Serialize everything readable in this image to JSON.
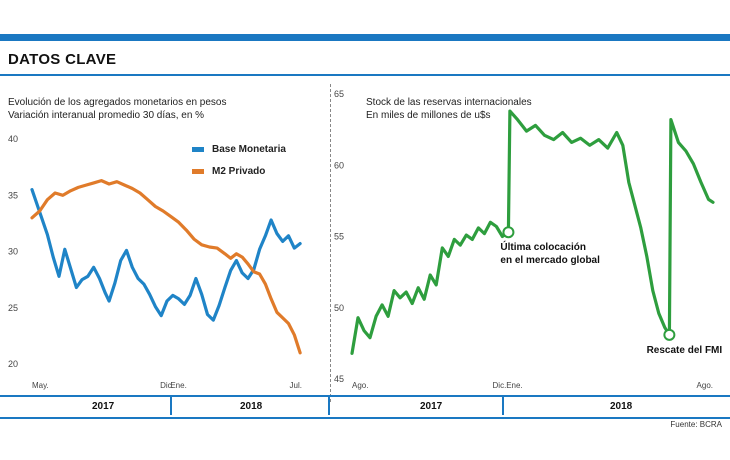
{
  "header": {
    "title": "DATOS CLAVE"
  },
  "colors": {
    "accent": "#1a78c2",
    "base": "#1f84c7",
    "m2": "#e07b2a",
    "reserves": "#2e9e3e"
  },
  "footer": {
    "source": "Fuente: BCRA"
  },
  "chart_data": [
    {
      "type": "line",
      "title": "Evolución de los agregados monetarios en pesos",
      "subtitle": "Variación interanual promedio 30 días, en %",
      "ylim": [
        20,
        40
      ],
      "yticks": [
        20,
        25,
        30,
        35,
        40
      ],
      "xlim": [
        0,
        14
      ],
      "xticks": [
        {
          "x": 0,
          "label": "May."
        },
        {
          "x": 7,
          "label": "Dic."
        },
        {
          "x": 7.6,
          "label": "Ene."
        },
        {
          "x": 14,
          "label": "Jul."
        }
      ],
      "years": [
        "2017",
        "2018"
      ],
      "legend": "top-right",
      "series": [
        {
          "name": "Base Monetaria",
          "color": "#1f84c7",
          "points": [
            [
              0,
              35.5
            ],
            [
              0.4,
              33.5
            ],
            [
              0.8,
              31.5
            ],
            [
              1.1,
              29.5
            ],
            [
              1.4,
              27.8
            ],
            [
              1.7,
              30.2
            ],
            [
              2.0,
              28.5
            ],
            [
              2.3,
              26.8
            ],
            [
              2.6,
              27.5
            ],
            [
              2.9,
              27.8
            ],
            [
              3.2,
              28.6
            ],
            [
              3.5,
              27.6
            ],
            [
              3.8,
              26.3
            ],
            [
              4.0,
              25.6
            ],
            [
              4.3,
              27.2
            ],
            [
              4.6,
              29.2
            ],
            [
              4.9,
              30.1
            ],
            [
              5.2,
              28.6
            ],
            [
              5.5,
              27.6
            ],
            [
              5.8,
              27.1
            ],
            [
              6.1,
              26.2
            ],
            [
              6.4,
              25.1
            ],
            [
              6.7,
              24.3
            ],
            [
              7.0,
              25.6
            ],
            [
              7.3,
              26.1
            ],
            [
              7.6,
              25.8
            ],
            [
              7.9,
              25.3
            ],
            [
              8.2,
              26.1
            ],
            [
              8.5,
              27.6
            ],
            [
              8.8,
              26.2
            ],
            [
              9.1,
              24.4
            ],
            [
              9.4,
              23.9
            ],
            [
              9.7,
              25.2
            ],
            [
              10.0,
              26.8
            ],
            [
              10.3,
              28.3
            ],
            [
              10.6,
              29.2
            ],
            [
              10.9,
              28.1
            ],
            [
              11.2,
              27.6
            ],
            [
              11.5,
              28.4
            ],
            [
              11.8,
              30.2
            ],
            [
              12.1,
              31.4
            ],
            [
              12.4,
              32.8
            ],
            [
              12.7,
              31.6
            ],
            [
              13.0,
              30.9
            ],
            [
              13.3,
              31.4
            ],
            [
              13.6,
              30.3
            ],
            [
              13.9,
              30.7
            ]
          ]
        },
        {
          "name": "M2 Privado",
          "color": "#e07b2a",
          "points": [
            [
              0,
              33.0
            ],
            [
              0.4,
              33.6
            ],
            [
              0.8,
              34.6
            ],
            [
              1.2,
              35.2
            ],
            [
              1.6,
              35.0
            ],
            [
              2.0,
              35.4
            ],
            [
              2.4,
              35.7
            ],
            [
              2.8,
              35.9
            ],
            [
              3.2,
              36.1
            ],
            [
              3.6,
              36.3
            ],
            [
              4.0,
              36.0
            ],
            [
              4.4,
              36.2
            ],
            [
              4.8,
              35.9
            ],
            [
              5.2,
              35.6
            ],
            [
              5.6,
              35.2
            ],
            [
              6.0,
              34.6
            ],
            [
              6.4,
              34.0
            ],
            [
              6.8,
              33.6
            ],
            [
              7.2,
              33.1
            ],
            [
              7.6,
              32.6
            ],
            [
              8.0,
              31.9
            ],
            [
              8.4,
              31.1
            ],
            [
              8.8,
              30.6
            ],
            [
              9.2,
              30.4
            ],
            [
              9.6,
              30.3
            ],
            [
              10.0,
              29.8
            ],
            [
              10.3,
              29.4
            ],
            [
              10.6,
              29.8
            ],
            [
              10.9,
              29.5
            ],
            [
              11.2,
              28.9
            ],
            [
              11.5,
              28.2
            ],
            [
              11.8,
              28.0
            ],
            [
              12.1,
              27.1
            ],
            [
              12.4,
              25.8
            ],
            [
              12.7,
              24.6
            ],
            [
              13.0,
              24.1
            ],
            [
              13.3,
              23.6
            ],
            [
              13.6,
              22.6
            ],
            [
              13.9,
              21.0
            ]
          ]
        }
      ]
    },
    {
      "type": "line",
      "title": "Stock de las reservas internacionales",
      "subtitle": "En miles de millones de u$s",
      "ylim": [
        45,
        65
      ],
      "yticks": [
        45,
        50,
        55,
        60,
        65
      ],
      "xlim": [
        0,
        12
      ],
      "xticks": [
        {
          "x": 0,
          "label": "Ago."
        },
        {
          "x": 4.9,
          "label": "Dic."
        },
        {
          "x": 5.4,
          "label": "Ene."
        },
        {
          "x": 12,
          "label": "Ago."
        }
      ],
      "years": [
        "2017",
        "2018"
      ],
      "series": [
        {
          "name": "",
          "color": "#2e9e3e",
          "points": [
            [
              0,
              46.8
            ],
            [
              0.2,
              49.3
            ],
            [
              0.4,
              48.4
            ],
            [
              0.6,
              47.9
            ],
            [
              0.8,
              49.4
            ],
            [
              1.0,
              50.2
            ],
            [
              1.2,
              49.4
            ],
            [
              1.4,
              51.2
            ],
            [
              1.6,
              50.7
            ],
            [
              1.8,
              51.1
            ],
            [
              2.0,
              50.3
            ],
            [
              2.2,
              51.4
            ],
            [
              2.4,
              50.6
            ],
            [
              2.6,
              52.3
            ],
            [
              2.8,
              51.6
            ],
            [
              3.0,
              54.2
            ],
            [
              3.2,
              53.6
            ],
            [
              3.4,
              54.8
            ],
            [
              3.6,
              54.4
            ],
            [
              3.8,
              55.1
            ],
            [
              4.0,
              54.8
            ],
            [
              4.2,
              55.6
            ],
            [
              4.4,
              55.2
            ],
            [
              4.6,
              56.0
            ],
            [
              4.8,
              55.7
            ],
            [
              5.0,
              55.0
            ],
            [
              5.2,
              55.3
            ],
            [
              5.25,
              63.8
            ],
            [
              5.5,
              63.2
            ],
            [
              5.8,
              62.4
            ],
            [
              6.1,
              62.8
            ],
            [
              6.4,
              62.1
            ],
            [
              6.7,
              61.8
            ],
            [
              7.0,
              62.3
            ],
            [
              7.3,
              61.6
            ],
            [
              7.6,
              61.9
            ],
            [
              7.9,
              61.4
            ],
            [
              8.2,
              61.8
            ],
            [
              8.5,
              61.2
            ],
            [
              8.8,
              62.3
            ],
            [
              9.0,
              61.4
            ],
            [
              9.2,
              58.8
            ],
            [
              9.4,
              57.2
            ],
            [
              9.6,
              55.6
            ],
            [
              9.8,
              53.6
            ],
            [
              10.0,
              51.2
            ],
            [
              10.2,
              49.6
            ],
            [
              10.4,
              48.6
            ],
            [
              10.55,
              48.1
            ],
            [
              10.6,
              63.2
            ],
            [
              10.85,
              61.6
            ],
            [
              11.1,
              61.0
            ],
            [
              11.35,
              60.1
            ],
            [
              11.6,
              58.8
            ],
            [
              11.85,
              57.6
            ],
            [
              12.0,
              57.4
            ]
          ]
        }
      ],
      "annotations": [
        {
          "x": 5.2,
          "y": 55.3,
          "label": [
            "Última colocación",
            "en el mercado global"
          ]
        },
        {
          "x": 10.55,
          "y": 48.1,
          "label": [
            "Rescate del FMI"
          ]
        }
      ]
    }
  ]
}
